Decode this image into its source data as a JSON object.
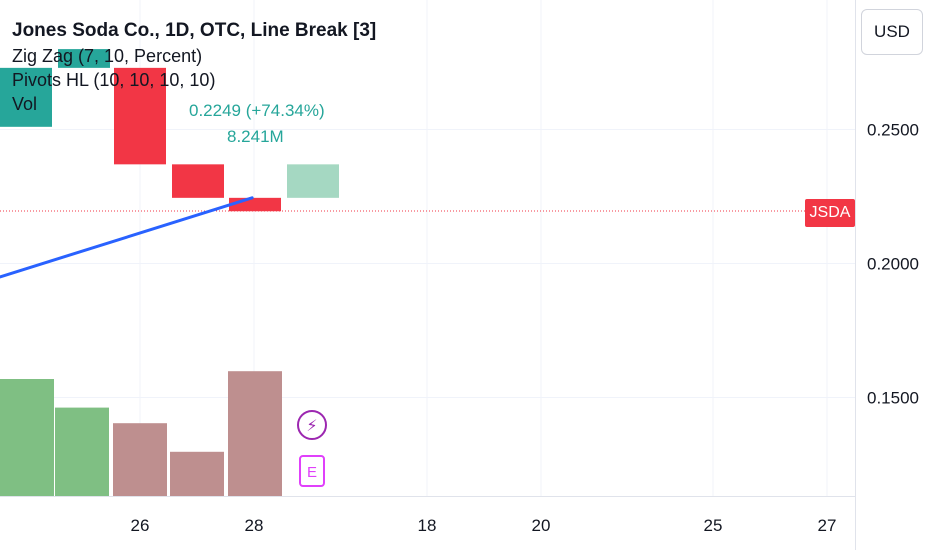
{
  "legend": {
    "title": "Jones Soda Co., 1D, OTC, Line Break [3]",
    "indicators": [
      "Zig Zag (7, 10, Percent)",
      "Pivots HL (10, 10, 10, 10)",
      "Vol"
    ]
  },
  "currency": "USD",
  "price_tag": "JSDA",
  "annotations": {
    "change": "0.2249 (+74.34%)",
    "volume": "8.241M"
  },
  "event_icons": {
    "dividend": "⚡",
    "earnings": "E"
  },
  "colors": {
    "up": "#26a69a",
    "down": "#f23645",
    "up_light": "#a5d8c2",
    "vol_up": "#7fbf83",
    "vol_down": "#be8f8f",
    "zigzag": "#2962ff",
    "event": "#9c27b0",
    "earnings": "#e040fb"
  },
  "chart_data": {
    "type": "line_break",
    "yaxis": {
      "ticks": [
        "0.2500",
        "0.2000",
        "0.1500"
      ],
      "tick_values": [
        0.25,
        0.2,
        0.15
      ]
    },
    "xaxis": {
      "ticks": [
        "26",
        "28",
        "18",
        "20",
        "25",
        "27"
      ]
    },
    "last_price": 0.2219,
    "bricks": [
      {
        "open": 0.251,
        "close": 0.273,
        "direction": "up"
      },
      {
        "open": 0.28,
        "close": 0.273,
        "direction": "up"
      },
      {
        "open": 0.273,
        "close": 0.237,
        "direction": "down"
      },
      {
        "open": 0.237,
        "close": 0.2245,
        "direction": "down"
      },
      {
        "open": 0.2245,
        "close": 0.2195,
        "direction": "down"
      },
      {
        "open": 0.2245,
        "close": 0.237,
        "direction": "up"
      }
    ],
    "zigzag": [
      {
        "x": 0.0,
        "y": 0.195
      },
      {
        "x": 4.4,
        "y": 0.2245
      }
    ],
    "volume": [
      {
        "value": 0.45,
        "direction": "up"
      },
      {
        "value": 0.34,
        "direction": "up"
      },
      {
        "value": 0.28,
        "direction": "down"
      },
      {
        "value": 0.17,
        "direction": "down"
      },
      {
        "value": 0.48,
        "direction": "down"
      }
    ],
    "grid": true
  }
}
